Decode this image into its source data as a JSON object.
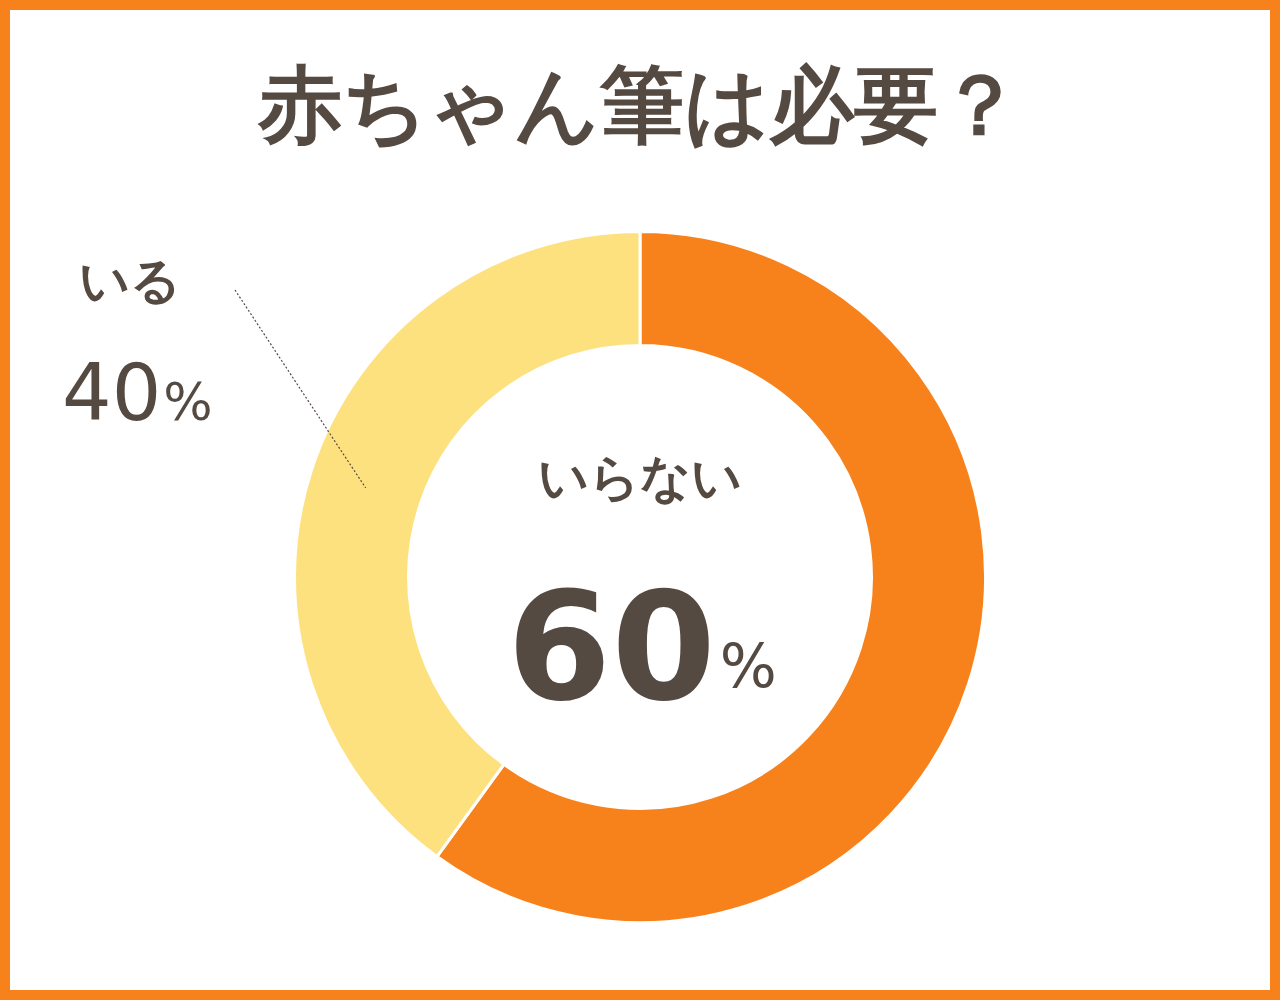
{
  "chart_data": {
    "type": "donut",
    "title": "赤ちゃん筆は必要？",
    "categories": [
      "いらない",
      "いる"
    ],
    "values": [
      60,
      40
    ],
    "colors": [
      "#f7821b",
      "#fde17f"
    ],
    "value_labels": [
      "60%",
      "40%"
    ],
    "legend": false
  }
}
